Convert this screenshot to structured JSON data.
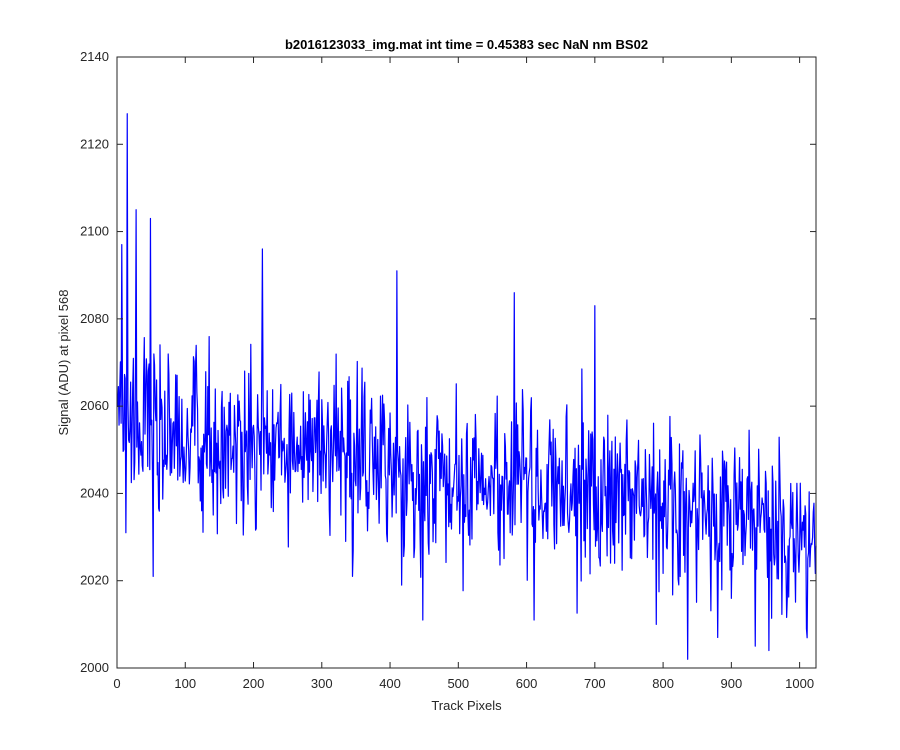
{
  "chart_data": {
    "type": "line",
    "title": "b2016123033_img.mat int time = 0.45383 sec  NaN nm BS02",
    "xlabel": "Track Pixels",
    "ylabel": "Signal (ADU) at pixel 568",
    "xlim": [
      0,
      1024
    ],
    "ylim": [
      2000,
      2140
    ],
    "xticks": [
      0,
      100,
      200,
      300,
      400,
      500,
      600,
      700,
      800,
      900,
      1000
    ],
    "yticks": [
      2000,
      2020,
      2040,
      2060,
      2080,
      2100,
      2120,
      2140
    ],
    "grid": false,
    "line_color": "#0000ff",
    "series": [
      {
        "x": [
          0,
          10,
          20,
          30,
          40,
          50,
          60,
          70,
          80,
          90,
          100,
          110,
          120,
          130,
          140,
          150,
          160,
          170,
          180,
          190,
          200,
          210,
          220,
          230,
          240,
          250,
          260,
          270,
          280,
          290,
          300,
          310,
          320,
          330,
          340,
          350,
          360,
          370,
          380,
          390,
          400,
          410,
          420,
          430,
          440,
          450,
          460,
          470,
          480,
          490,
          500,
          510,
          520,
          530,
          540,
          550,
          560,
          570,
          580,
          590,
          600,
          610,
          620,
          630,
          640,
          650,
          660,
          670,
          680,
          690,
          700,
          710,
          720,
          730,
          740,
          750,
          760,
          770,
          780,
          790,
          800,
          810,
          820,
          830,
          840,
          850,
          860,
          870,
          880,
          890,
          900,
          910,
          920,
          930,
          940,
          950,
          960,
          970,
          980,
          990,
          1000,
          1010,
          1020,
          1024
        ],
        "y": [
          2060,
          2058,
          2057,
          2056,
          2056,
          2055,
          2055,
          2054,
          2054,
          2053,
          2053,
          2052,
          2052,
          2052,
          2052,
          2051,
          2051,
          2051,
          2051,
          2051,
          2051,
          2051,
          2051,
          2050,
          2050,
          2050,
          2050,
          2050,
          2050,
          2049,
          2049,
          2049,
          2049,
          2049,
          2049,
          2050,
          2050,
          2050,
          2049,
          2049,
          2047,
          2046,
          2045,
          2044,
          2043,
          2042,
          2042,
          2042,
          2042,
          2042,
          2042,
          2042,
          2042,
          2042,
          2042,
          2042,
          2042,
          2042,
          2042,
          2042,
          2041,
          2041,
          2041,
          2041,
          2041,
          2041,
          2041,
          2041,
          2040,
          2040,
          2040,
          2040,
          2040,
          2039,
          2039,
          2039,
          2039,
          2038,
          2038,
          2038,
          2037,
          2037,
          2037,
          2037,
          2037,
          2037,
          2036,
          2036,
          2035,
          2035,
          2034,
          2034,
          2034,
          2034,
          2033,
          2032,
          2032,
          2031,
          2031,
          2031,
          2031,
          2030,
          2030,
          2030
        ],
        "fluctuation_sd": 10
      }
    ],
    "notable_points": [
      {
        "x": 7,
        "y": 2097
      },
      {
        "x": 13,
        "y": 2031
      },
      {
        "x": 15,
        "y": 2127
      },
      {
        "x": 28,
        "y": 2105
      },
      {
        "x": 49,
        "y": 2103
      },
      {
        "x": 53,
        "y": 2021
      },
      {
        "x": 213,
        "y": 2096
      },
      {
        "x": 345,
        "y": 2021
      },
      {
        "x": 410,
        "y": 2091
      },
      {
        "x": 417,
        "y": 2019
      },
      {
        "x": 448,
        "y": 2011
      },
      {
        "x": 582,
        "y": 2086
      },
      {
        "x": 700,
        "y": 2083
      },
      {
        "x": 790,
        "y": 2010
      },
      {
        "x": 836,
        "y": 2002
      },
      {
        "x": 880,
        "y": 2007
      },
      {
        "x": 935,
        "y": 2005
      },
      {
        "x": 955,
        "y": 2004
      },
      {
        "x": 1010,
        "y": 2009
      }
    ]
  }
}
